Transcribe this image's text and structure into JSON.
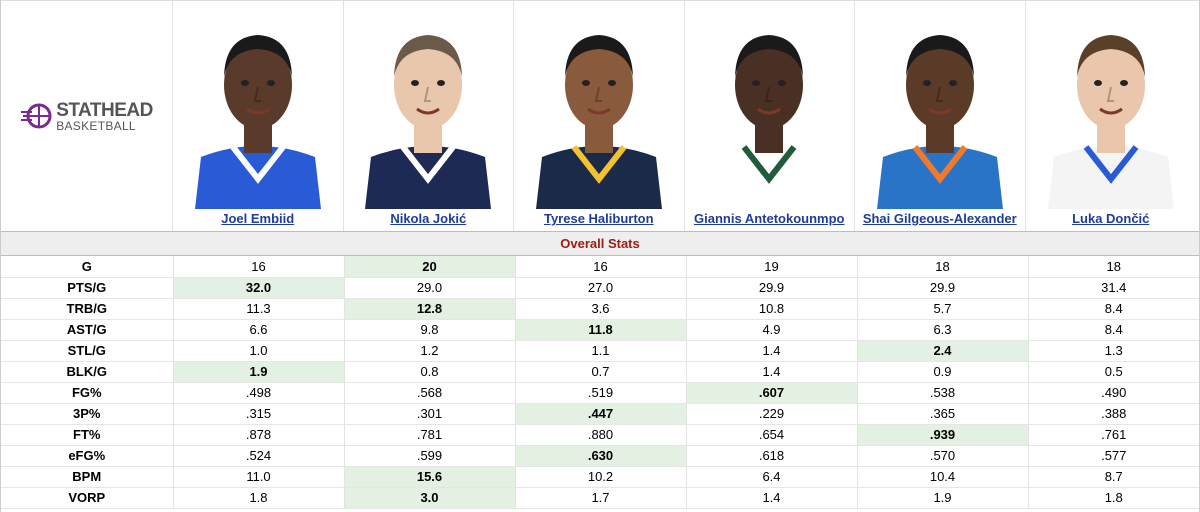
{
  "brand": {
    "name": "STATHEAD",
    "sub": "BASKETBALL",
    "colors": {
      "logo_accent": "#7b2a8f",
      "best_cell": "#e3f1e3",
      "link": "#1d3c9c",
      "section_title": "#9b1c12"
    }
  },
  "players": [
    {
      "name": "Joel Embiid",
      "jersey": "#2a5bd7",
      "trim": "#ffffff",
      "skin": "#5a3a2a",
      "hair": "#1a1a1a"
    },
    {
      "name": "Nikola Jokić",
      "jersey": "#1d2a56",
      "trim": "#ffffff",
      "skin": "#e8c7ad",
      "hair": "#6b5a4a"
    },
    {
      "name": "Tyrese Haliburton",
      "jersey": "#1a2a48",
      "trim": "#f2c230",
      "skin": "#8a5a3c",
      "hair": "#1a1a1a"
    },
    {
      "name": "Giannis Antetokounmpo",
      "jersey": "#ffffff",
      "trim": "#1f5c3a",
      "skin": "#4a3024",
      "hair": "#1a1a1a"
    },
    {
      "name": "Shai Gilgeous-Alexander",
      "jersey": "#2a74c8",
      "trim": "#f07a2a",
      "skin": "#5c3a28",
      "hair": "#1a1a1a"
    },
    {
      "name": "Luka Dončić",
      "jersey": "#f4f4f4",
      "trim": "#2a5bd7",
      "skin": "#e9c6ac",
      "hair": "#5a4028"
    }
  ],
  "section_title": "Overall Stats",
  "rows": [
    {
      "label": "G",
      "values": [
        "16",
        "20",
        "16",
        "19",
        "18",
        "18"
      ],
      "best": 1
    },
    {
      "label": "PTS/G",
      "values": [
        "32.0",
        "29.0",
        "27.0",
        "29.9",
        "29.9",
        "31.4"
      ],
      "best": 0
    },
    {
      "label": "TRB/G",
      "values": [
        "11.3",
        "12.8",
        "3.6",
        "10.8",
        "5.7",
        "8.4"
      ],
      "best": 1
    },
    {
      "label": "AST/G",
      "values": [
        "6.6",
        "9.8",
        "11.8",
        "4.9",
        "6.3",
        "8.4"
      ],
      "best": 2
    },
    {
      "label": "STL/G",
      "values": [
        "1.0",
        "1.2",
        "1.1",
        "1.4",
        "2.4",
        "1.3"
      ],
      "best": 4
    },
    {
      "label": "BLK/G",
      "values": [
        "1.9",
        "0.8",
        "0.7",
        "1.4",
        "0.9",
        "0.5"
      ],
      "best": 0
    },
    {
      "label": "FG%",
      "values": [
        ".498",
        ".568",
        ".519",
        ".607",
        ".538",
        ".490"
      ],
      "best": 3
    },
    {
      "label": "3P%",
      "values": [
        ".315",
        ".301",
        ".447",
        ".229",
        ".365",
        ".388"
      ],
      "best": 2
    },
    {
      "label": "FT%",
      "values": [
        ".878",
        ".781",
        ".880",
        ".654",
        ".939",
        ".761"
      ],
      "best": 4
    },
    {
      "label": "eFG%",
      "values": [
        ".524",
        ".599",
        ".630",
        ".618",
        ".570",
        ".577"
      ],
      "best": 2
    },
    {
      "label": "BPM",
      "values": [
        "11.0",
        "15.6",
        "10.2",
        "6.4",
        "10.4",
        "8.7"
      ],
      "best": 1
    },
    {
      "label": "VORP",
      "values": [
        "1.8",
        "3.0",
        "1.7",
        "1.4",
        "1.9",
        "1.8"
      ],
      "best": 1
    }
  ]
}
